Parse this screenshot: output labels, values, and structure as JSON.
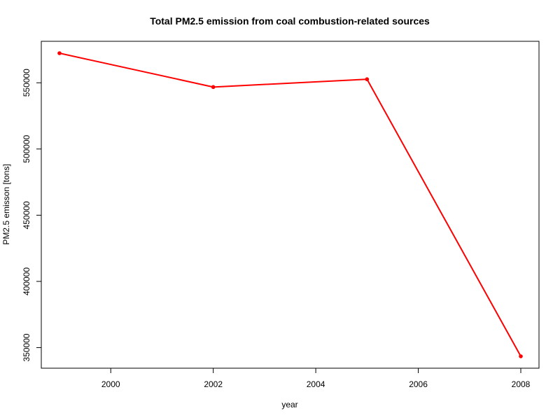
{
  "chart_data": {
    "type": "line",
    "title": "Total PM2.5 emission from coal combustion-related sources",
    "xlabel": "year",
    "ylabel": "PM2.5 emisson [tons]",
    "x": [
      1999,
      2002,
      2005,
      2008
    ],
    "series": [
      {
        "values": [
          572346,
          546789,
          552675,
          343432
        ],
        "color": "#ff0000"
      }
    ],
    "xlim": [
      1999,
      2008
    ],
    "ylim": [
      343432,
      572346
    ],
    "xticks": [
      2000,
      2002,
      2004,
      2006,
      2008
    ],
    "yticks": [
      350000,
      400000,
      450000,
      500000,
      550000
    ],
    "grid": false,
    "legend": "none"
  }
}
